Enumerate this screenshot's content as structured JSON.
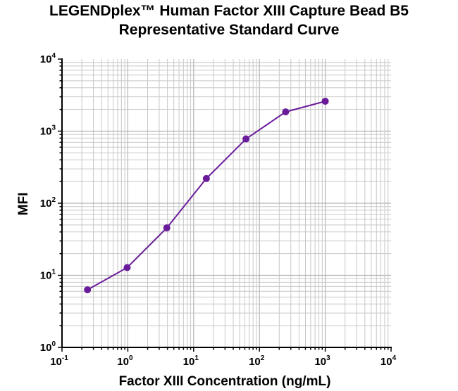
{
  "chart_data": {
    "type": "line",
    "title_lines": [
      "LEGENDplex™ Human Factor XIII Capture Bead B5",
      "Representative Standard Curve"
    ],
    "xlabel": "Factor  XIII Concentration (ng/mL)",
    "ylabel": "MFI",
    "x_scale": "log",
    "y_scale": "log",
    "xlim": [
      0.1,
      10000
    ],
    "ylim": [
      1,
      10000
    ],
    "x_ticks": [
      {
        "base": "10",
        "exp": "-1"
      },
      {
        "base": "10",
        "exp": "0"
      },
      {
        "base": "10",
        "exp": "1"
      },
      {
        "base": "10",
        "exp": "2"
      },
      {
        "base": "10",
        "exp": "3"
      },
      {
        "base": "10",
        "exp": "4"
      }
    ],
    "y_ticks": [
      {
        "base": "10",
        "exp": "0"
      },
      {
        "base": "10",
        "exp": "1"
      },
      {
        "base": "10",
        "exp": "2"
      },
      {
        "base": "10",
        "exp": "3"
      },
      {
        "base": "10",
        "exp": "4"
      }
    ],
    "grid": true,
    "series": [
      {
        "color": "#6a1b9a",
        "x": [
          0.244,
          0.977,
          3.91,
          15.6,
          62.5,
          250,
          1000
        ],
        "y": [
          6.3,
          12.8,
          45.5,
          220,
          780,
          1850,
          2600
        ]
      }
    ]
  }
}
